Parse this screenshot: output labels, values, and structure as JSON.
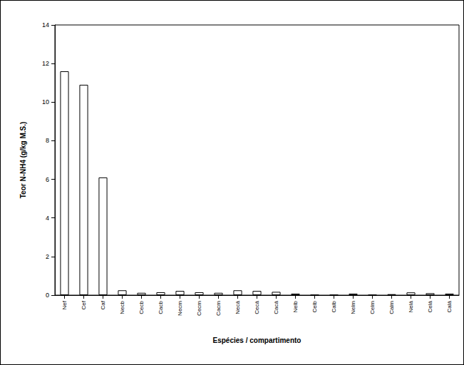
{
  "chart_data": {
    "type": "bar",
    "y_label": "Teor N-NH4 (g/kg M.S.)",
    "x_label": "Espécies / compartimento",
    "categories": [
      "Nef",
      "Cef",
      "Caf",
      "Necb",
      "Cecb",
      "Cacb",
      "Necm",
      "Cecm",
      "Cacm",
      "Necá",
      "Cecá",
      "Cacá",
      "Nelb",
      "Celb",
      "Calb",
      "Nelm",
      "Celm",
      "Calm",
      "Nelá",
      "Celá",
      "Calá"
    ],
    "values": [
      11.6,
      10.9,
      6.1,
      0.25,
      0.12,
      0.15,
      0.22,
      0.15,
      0.12,
      0.25,
      0.22,
      0.17,
      0.08,
      0.02,
      0.02,
      0.08,
      0.02,
      0.05,
      0.14,
      0.1,
      0.08
    ],
    "color": "#ffffff",
    "ylim": [
      0,
      14
    ],
    "yticks": [
      0,
      2,
      4,
      6,
      8,
      10,
      12,
      14
    ],
    "grid": false
  }
}
